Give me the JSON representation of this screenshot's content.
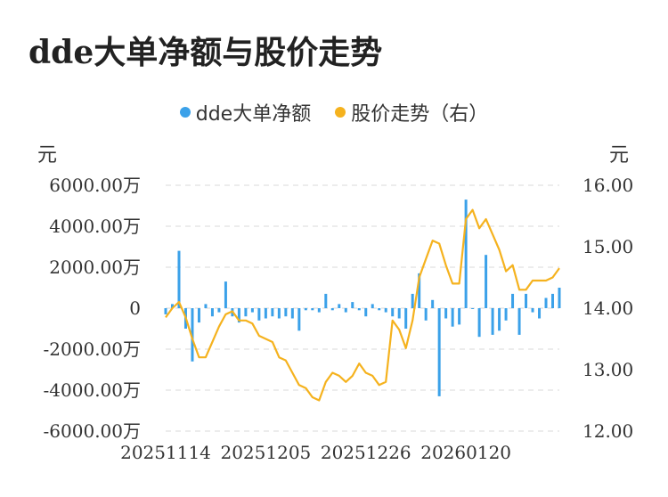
{
  "title": "dde大单净额与股价走势",
  "legend": {
    "series1_label": "dde大单净额",
    "series2_label": "股价走势（右）"
  },
  "units": {
    "left": "元",
    "right": "元"
  },
  "colors": {
    "bars": "#3ba1e9",
    "line": "#f5b21e",
    "grid": "#e6e6e6",
    "text": "#333333"
  },
  "chart_data": {
    "type": "bar+line",
    "title": "dde大单净额与股价走势",
    "grid": true,
    "legend_position": "top-center",
    "x_tick_labels": [
      "20251114",
      "20251205",
      "20251226",
      "20260120"
    ],
    "y_left": {
      "unit": "万",
      "range": [
        -6000,
        6000
      ],
      "ticks": [
        "6000.00万",
        "4000.00万",
        "2000.00万",
        "0",
        "-2000.00万",
        "-4000.00万",
        "-6000.00万"
      ]
    },
    "y_right": {
      "range": [
        12,
        16
      ],
      "ticks": [
        "16.00",
        "15.00",
        "14.00",
        "13.00",
        "12.00"
      ]
    },
    "series": [
      {
        "name": "dde大单净额",
        "type": "bar",
        "axis": "left",
        "values": [
          -300,
          200,
          2800,
          -1000,
          -2600,
          -700,
          200,
          -400,
          -200,
          1300,
          -400,
          -700,
          -400,
          -200,
          -600,
          -500,
          -400,
          -500,
          -400,
          -500,
          -1100,
          -100,
          -100,
          -200,
          700,
          -100,
          200,
          -200,
          300,
          -100,
          -400,
          200,
          -100,
          -200,
          -400,
          -500,
          -1000,
          700,
          1700,
          -600,
          400,
          -4300,
          -500,
          -900,
          -800,
          5300,
          0,
          -1400,
          2600,
          -1300,
          -1100,
          -600,
          700,
          -1300,
          700,
          -200,
          -500,
          500,
          700,
          1000
        ]
      },
      {
        "name": "股价走势（右）",
        "type": "line",
        "axis": "right",
        "values": [
          13.85,
          14.0,
          14.1,
          13.85,
          13.5,
          13.2,
          13.2,
          13.45,
          13.7,
          13.9,
          13.95,
          13.8,
          13.8,
          13.75,
          13.55,
          13.5,
          13.45,
          13.2,
          13.15,
          12.95,
          12.75,
          12.7,
          12.55,
          12.5,
          12.8,
          12.95,
          12.9,
          12.8,
          12.9,
          13.1,
          12.95,
          12.9,
          12.75,
          12.8,
          13.8,
          13.65,
          13.35,
          13.8,
          14.5,
          14.8,
          15.1,
          15.05,
          14.7,
          14.4,
          14.4,
          15.45,
          15.6,
          15.3,
          15.45,
          15.2,
          14.95,
          14.6,
          14.7,
          14.3,
          14.3,
          14.45,
          14.45,
          14.45,
          14.5,
          14.65
        ]
      }
    ]
  }
}
